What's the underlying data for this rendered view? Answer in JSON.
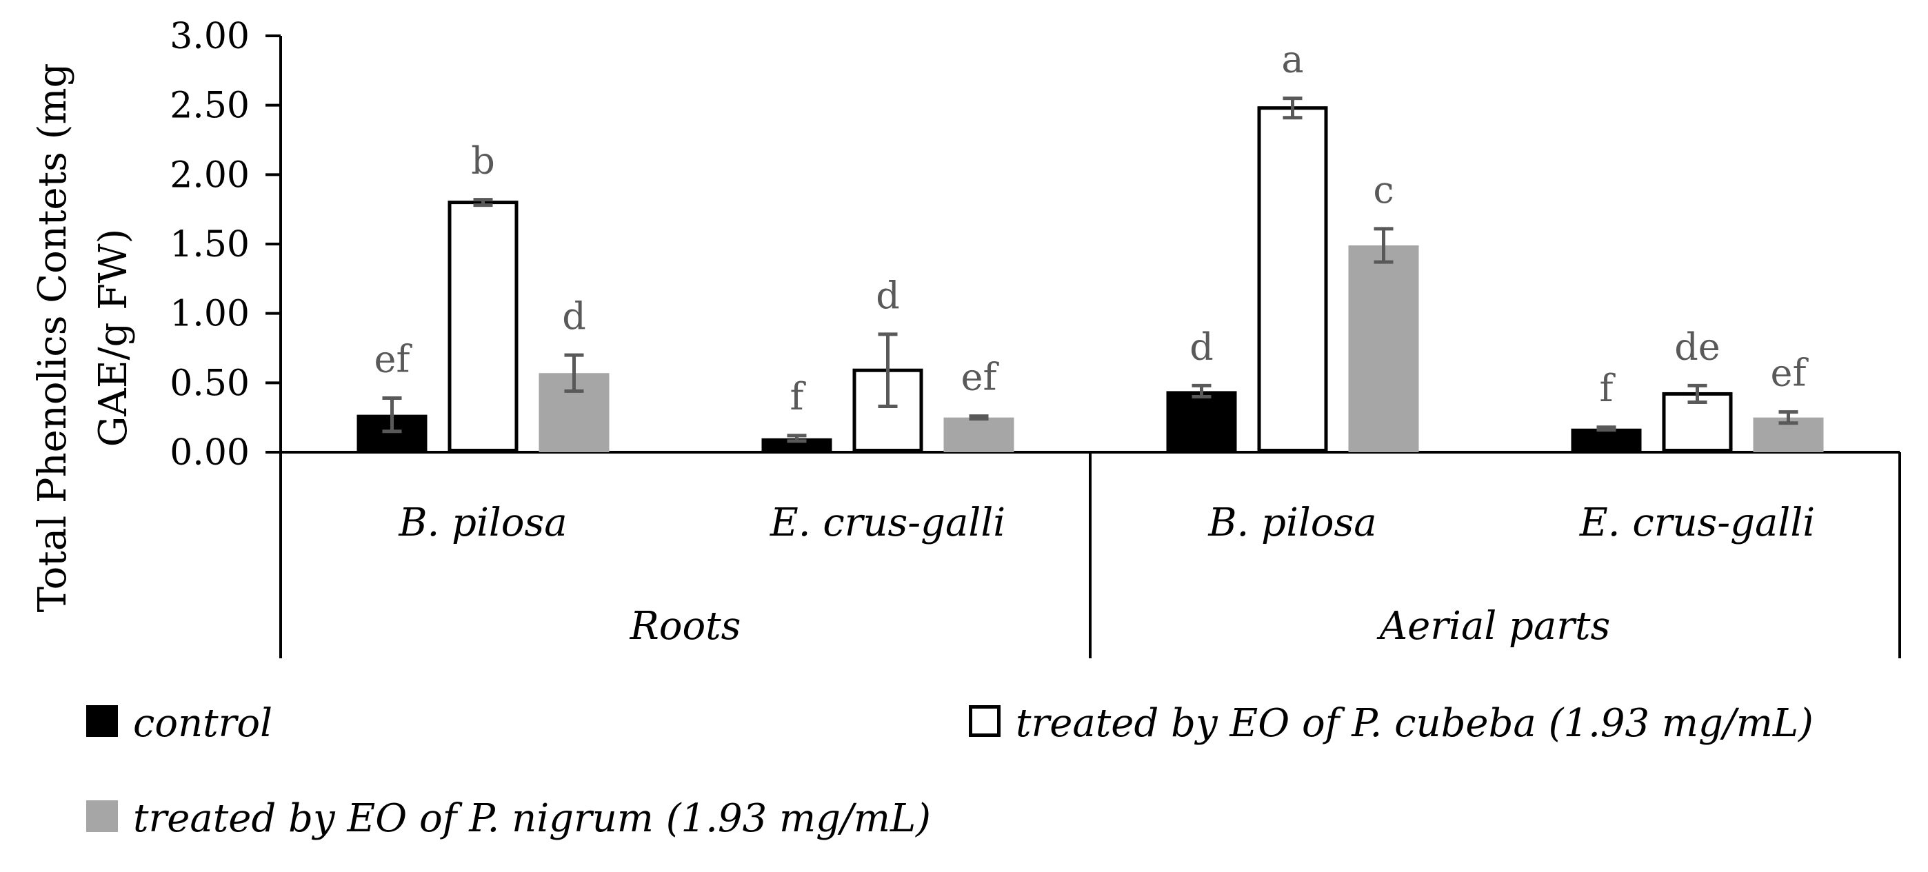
{
  "chart_data": {
    "type": "bar",
    "title": "",
    "ylabel": "Total Phenolics Contets (mg GAE/g FW)",
    "ylabel_lines": [
      "Total Phenolics Contets (mg",
      "GAE/g FW)"
    ],
    "ylim": [
      0,
      3
    ],
    "yticks": [
      "0.00",
      "0.50",
      "1.00",
      "1.50",
      "2.00",
      "2.50",
      "3.00"
    ],
    "groups": [
      "Roots",
      "Aerial parts"
    ],
    "categories": [
      "B. pilosa",
      "E. crus-galli",
      "B. pilosa",
      "E. crus-galli"
    ],
    "category_group": [
      0,
      0,
      1,
      1
    ],
    "series": [
      {
        "name": "control",
        "fill": "#000000",
        "stroke": "#000000",
        "values": [
          0.27,
          0.1,
          0.44,
          0.17
        ],
        "errors": [
          0.12,
          0.02,
          0.04,
          0.01
        ],
        "letters": [
          "ef",
          "f",
          "d",
          "f"
        ]
      },
      {
        "name": "treated by EO of P. cubeba (1.93 mg/mL)",
        "fill": "#ffffff",
        "stroke": "#000000",
        "values": [
          1.8,
          0.59,
          2.48,
          0.42
        ],
        "errors": [
          0.02,
          0.26,
          0.07,
          0.06
        ],
        "letters": [
          "b",
          "d",
          "a",
          "de"
        ]
      },
      {
        "name": "treated by EO of P. nigrum (1.93 mg/mL)",
        "fill": "#a6a6a6",
        "stroke": "#a6a6a6",
        "values": [
          0.57,
          0.25,
          1.49,
          0.25
        ],
        "errors": [
          0.13,
          0.01,
          0.12,
          0.04
        ],
        "letters": [
          "d",
          "ef",
          "c",
          "ef"
        ]
      }
    ],
    "legend": {
      "position": "bottom",
      "entries": [
        "control",
        "treated by EO of P. cubeba (1.93 mg/mL)",
        "treated by EO of P. nigrum (1.93 mg/mL)"
      ]
    },
    "colors": {
      "axis": "#000000",
      "error_bar": "#595959",
      "significance_text": "#595959"
    }
  }
}
